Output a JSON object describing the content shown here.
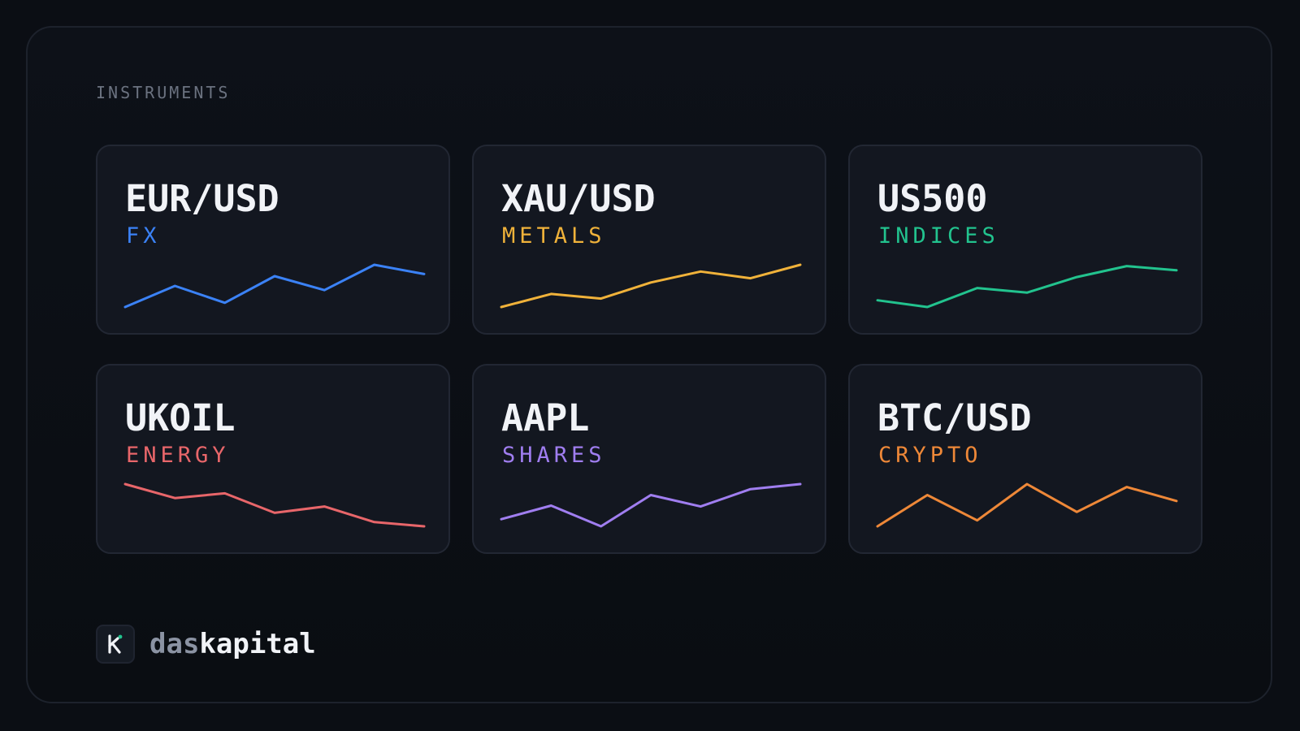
{
  "section_label": "INSTRUMENTS",
  "instruments": [
    {
      "symbol": "EUR/USD",
      "category": "FX",
      "color": "#3b82f6",
      "trend": [
        0.0,
        0.5,
        0.1,
        0.73,
        0.4,
        1.0,
        0.78
      ]
    },
    {
      "symbol": "XAU/USD",
      "category": "METALS",
      "color": "#f0b23a",
      "trend": [
        0.0,
        0.31,
        0.2,
        0.58,
        0.84,
        0.68,
        1.0
      ]
    },
    {
      "symbol": "US500",
      "category": "INDICES",
      "color": "#22c38e",
      "trend": [
        0.16,
        0.0,
        0.45,
        0.34,
        0.71,
        0.97,
        0.87
      ]
    },
    {
      "symbol": "UKOIL",
      "category": "ENERGY",
      "color": "#e8666a",
      "trend": [
        1.0,
        0.67,
        0.78,
        0.32,
        0.47,
        0.1,
        0.0
      ]
    },
    {
      "symbol": "AAPL",
      "category": "SHARES",
      "color": "#a07ef0",
      "trend": [
        0.17,
        0.49,
        0.0,
        0.74,
        0.47,
        0.88,
        1.0
      ]
    },
    {
      "symbol": "BTC/USD",
      "category": "CRYPTO",
      "color": "#ee8838",
      "trend": [
        0.0,
        0.74,
        0.14,
        1.0,
        0.34,
        0.93,
        0.6
      ]
    }
  ],
  "brand": {
    "logo_letter": "K",
    "logo_accent": "#22c38e",
    "name_part1": "das",
    "name_part2": "kapital"
  }
}
